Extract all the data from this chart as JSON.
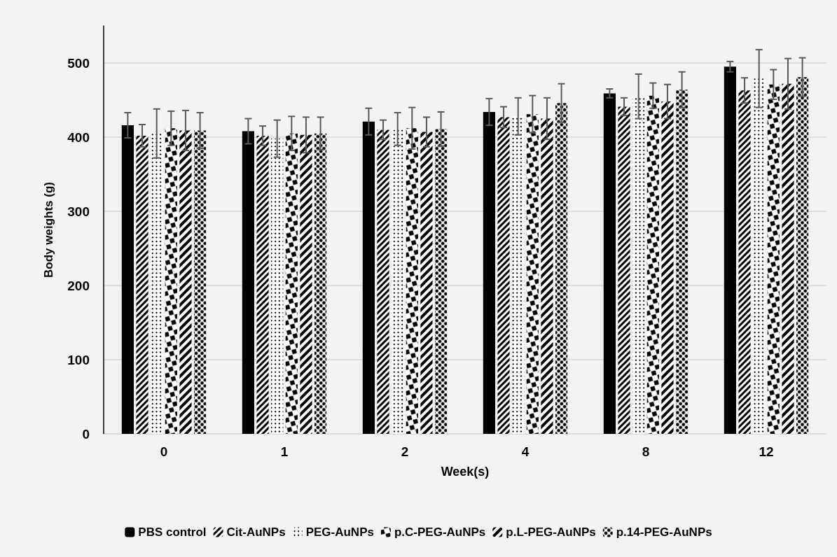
{
  "chart_data": {
    "type": "bar",
    "xlabel": "Week(s)",
    "ylabel": "Body weights (g)",
    "categories": [
      "0",
      "1",
      "2",
      "4",
      "8",
      "12"
    ],
    "series": [
      {
        "name": "PBS control",
        "color": "#000000",
        "values": [
          416,
          408,
          421,
          434,
          459,
          495
        ],
        "errors": [
          17,
          17,
          18,
          18,
          6,
          7
        ]
      },
      {
        "name": "Cit-AuNPs",
        "color": "#000000",
        "values": [
          402,
          402,
          410,
          427,
          441,
          463
        ],
        "errors": [
          15,
          13,
          13,
          14,
          12,
          17
        ]
      },
      {
        "name": "PEG-AuNPs",
        "color": "#000000",
        "values": [
          405,
          398,
          411,
          428,
          455,
          479
        ],
        "errors": [
          33,
          25,
          22,
          25,
          30,
          39
        ]
      },
      {
        "name": "p.C-PEG-AuNPs",
        "color": "#000000",
        "values": [
          412,
          405,
          412,
          431,
          456,
          471
        ],
        "errors": [
          23,
          23,
          28,
          25,
          17,
          20
        ]
      },
      {
        "name": "p.L-PEG-AuNPs",
        "color": "#000000",
        "values": [
          409,
          403,
          407,
          425,
          448,
          472
        ],
        "errors": [
          27,
          24,
          20,
          28,
          23,
          34
        ]
      },
      {
        "name": "p.14-PEG-AuNPs",
        "color": "#000000",
        "values": [
          409,
          405,
          411,
          446,
          464,
          481
        ],
        "errors": [
          24,
          22,
          23,
          26,
          24,
          26
        ]
      }
    ],
    "ylim": [
      0,
      550
    ],
    "yticks": [
      0,
      100,
      200,
      300,
      400,
      500
    ],
    "grid": "y",
    "legend": "bottom"
  }
}
